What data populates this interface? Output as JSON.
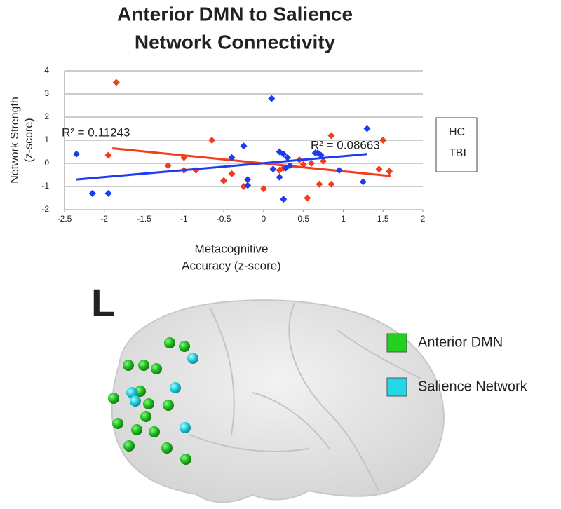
{
  "chart_data": {
    "type": "scatter",
    "title": [
      "Anterior DMN to Salience",
      "Network Connectivity"
    ],
    "x_label": [
      "Metacognitive",
      "Accuracy (z-score)"
    ],
    "y_label": [
      "Network Strength",
      "(z-score)"
    ],
    "xlim": [
      -2.5,
      2
    ],
    "xticks": [
      -2.5,
      -2,
      -1.5,
      -1,
      -0.5,
      0,
      0.5,
      1,
      1.5,
      2
    ],
    "ylim": [
      -2,
      4
    ],
    "yticks": [
      -2,
      -1,
      0,
      1,
      2,
      3,
      4
    ],
    "grid": true,
    "legend": "right",
    "annotations": [
      "R² = 0.11243",
      "R² = 0.08663"
    ],
    "series": [
      {
        "name": "HC",
        "color": "#f23c1c",
        "x": [
          -1.85,
          -1.95,
          -1.2,
          -1,
          -1,
          -0.85,
          -0.65,
          -0.5,
          -0.4,
          -0.25,
          0,
          0.25,
          0.2,
          0.45,
          0.5,
          0.55,
          0.6,
          0.85,
          0.7,
          0.85,
          0.75,
          1.45,
          1.5,
          1.58
        ],
        "values": [
          3.5,
          0.35,
          -0.1,
          0.25,
          -0.3,
          -0.3,
          1,
          -0.75,
          -0.45,
          -1,
          -1.1,
          -0.2,
          -0.3,
          0.15,
          -0.05,
          -1.5,
          0,
          1.2,
          -0.9,
          -0.9,
          0.1,
          -0.25,
          1,
          -0.35
        ],
        "trendline": {
          "x": [
            -1.9,
            1.6
          ],
          "y": [
            0.65,
            -0.55
          ]
        }
      },
      {
        "name": "TBI",
        "color": "#1c3cf2",
        "x": [
          -2.35,
          -2.15,
          -1.95,
          -0.25,
          -0.4,
          -0.2,
          -0.2,
          0.1,
          0.12,
          0.2,
          0.25,
          0.3,
          0.2,
          0.25,
          0.33,
          0.28,
          0.65,
          0.72,
          0.68,
          0.95,
          1.25,
          1.3
        ],
        "values": [
          0.4,
          -1.3,
          -1.3,
          0.75,
          0.25,
          -0.7,
          -0.95,
          2.8,
          -0.25,
          0.5,
          0.4,
          0.25,
          -0.6,
          -1.55,
          -0.1,
          -0.2,
          0.45,
          0.35,
          0.45,
          -0.3,
          -0.8,
          1.5
        ],
        "trendline": {
          "x": [
            -2.35,
            1.3
          ],
          "y": [
            -0.7,
            0.4
          ]
        }
      }
    ]
  },
  "figure": {
    "label": "L",
    "legend": [
      {
        "name": "Anterior DMN",
        "color": "#22d022"
      },
      {
        "name": "Salience Network",
        "color": "#22d8e8"
      }
    ]
  }
}
